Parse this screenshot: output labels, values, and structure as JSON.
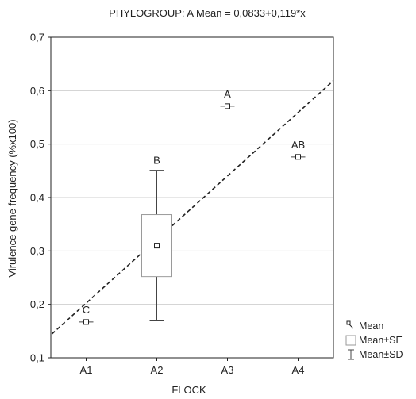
{
  "chart_data": {
    "type": "box",
    "title": "PHYLOGROUP: A Mean = 0,0833+0,119*x",
    "xlabel": "FLOCK",
    "ylabel": "Virulence gene frequency (%x100)",
    "categories": [
      "A1",
      "A2",
      "A3",
      "A4"
    ],
    "ylim": [
      0.1,
      0.7
    ],
    "yticks": [
      "0,1",
      "0,2",
      "0,3",
      "0,4",
      "0,5",
      "0,6",
      "0,7"
    ],
    "ytick_values": [
      0.1,
      0.2,
      0.3,
      0.4,
      0.5,
      0.6,
      0.7
    ],
    "grid": true,
    "series": [
      {
        "mean": [
          0.167,
          0.31,
          0.571,
          0.476
        ],
        "se_low": [
          0.167,
          0.252,
          0.571,
          0.476
        ],
        "se_high": [
          0.167,
          0.368,
          0.571,
          0.476
        ],
        "sd_low": [
          0.167,
          0.169,
          0.571,
          0.476
        ],
        "sd_high": [
          0.167,
          0.451,
          0.571,
          0.476
        ]
      }
    ],
    "group_letters": [
      "C",
      "B",
      "A",
      "AB"
    ],
    "regression": {
      "intercept": 0.0833,
      "slope": 0.119
    },
    "legend": {
      "position": "bottom-right",
      "items": [
        "Mean",
        "Mean±SE",
        "Mean±SD"
      ]
    }
  }
}
